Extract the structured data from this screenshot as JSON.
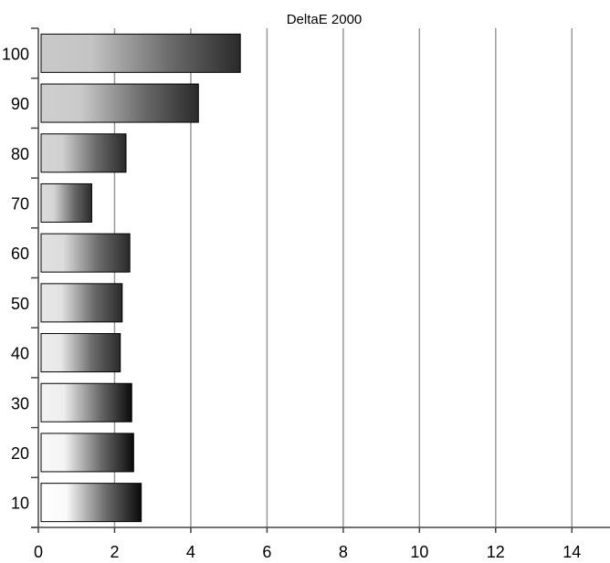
{
  "chart_data": {
    "type": "bar",
    "orientation": "horizontal",
    "title": "DeltaE 2000",
    "xlabel": "",
    "ylabel": "",
    "categories": [
      "10",
      "20",
      "30",
      "40",
      "50",
      "60",
      "70",
      "80",
      "90",
      "100"
    ],
    "values": [
      2.7,
      2.5,
      2.45,
      2.15,
      2.2,
      2.4,
      1.4,
      2.3,
      4.2,
      5.3
    ],
    "xlim": [
      0,
      15
    ],
    "xticks": [
      "0",
      "2",
      "4",
      "6",
      "8",
      "10",
      "12",
      "14"
    ],
    "grid": "vertical",
    "legend": "none",
    "bar_fill": "white-to-black gradient",
    "colors": {
      "gridline": "#999999",
      "axis": "#444444",
      "bar_border": "#000000"
    }
  }
}
